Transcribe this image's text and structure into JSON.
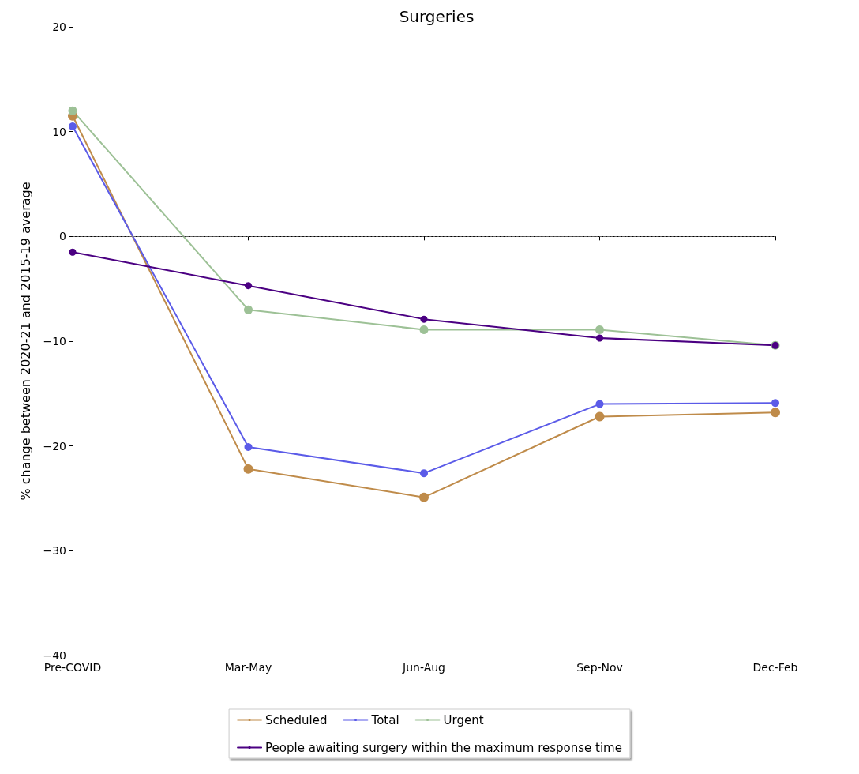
{
  "chart_data": {
    "type": "line",
    "title": "Surgeries",
    "ylabel": "% change between 2020-21 and 2015-19 average",
    "categories": [
      "Pre-COVID",
      "Mar-May",
      "Jun-Aug",
      "Sep-Nov",
      "Dec-Feb"
    ],
    "series": [
      {
        "name": "Scheduled",
        "color": "#bf8b4a",
        "values": [
          11.5,
          -22.2,
          -24.9,
          -17.2,
          -16.8
        ]
      },
      {
        "name": "Urgent",
        "color": "#9dc196",
        "values": [
          12.0,
          -7.0,
          -8.9,
          -8.9,
          -10.4
        ]
      },
      {
        "name": "Total",
        "color": "#5b5be8",
        "values": [
          10.5,
          -20.1,
          -22.6,
          -16.0,
          -15.9
        ]
      },
      {
        "name": "People awaiting surgery within the maximum response time",
        "color": "#4b0082",
        "values": [
          -1.5,
          -4.7,
          -7.9,
          -9.7,
          -10.4
        ]
      }
    ],
    "ylim": [
      -40,
      20
    ],
    "yticks": [
      -40,
      -30,
      -20,
      -10,
      0,
      10,
      20
    ],
    "ref_lines": [
      {
        "axis": "y",
        "value": 0,
        "color": "#808080",
        "line_style": "dashed"
      }
    ],
    "grid": false,
    "legend": "bottom",
    "marker": "circle",
    "line_style": "solid"
  }
}
